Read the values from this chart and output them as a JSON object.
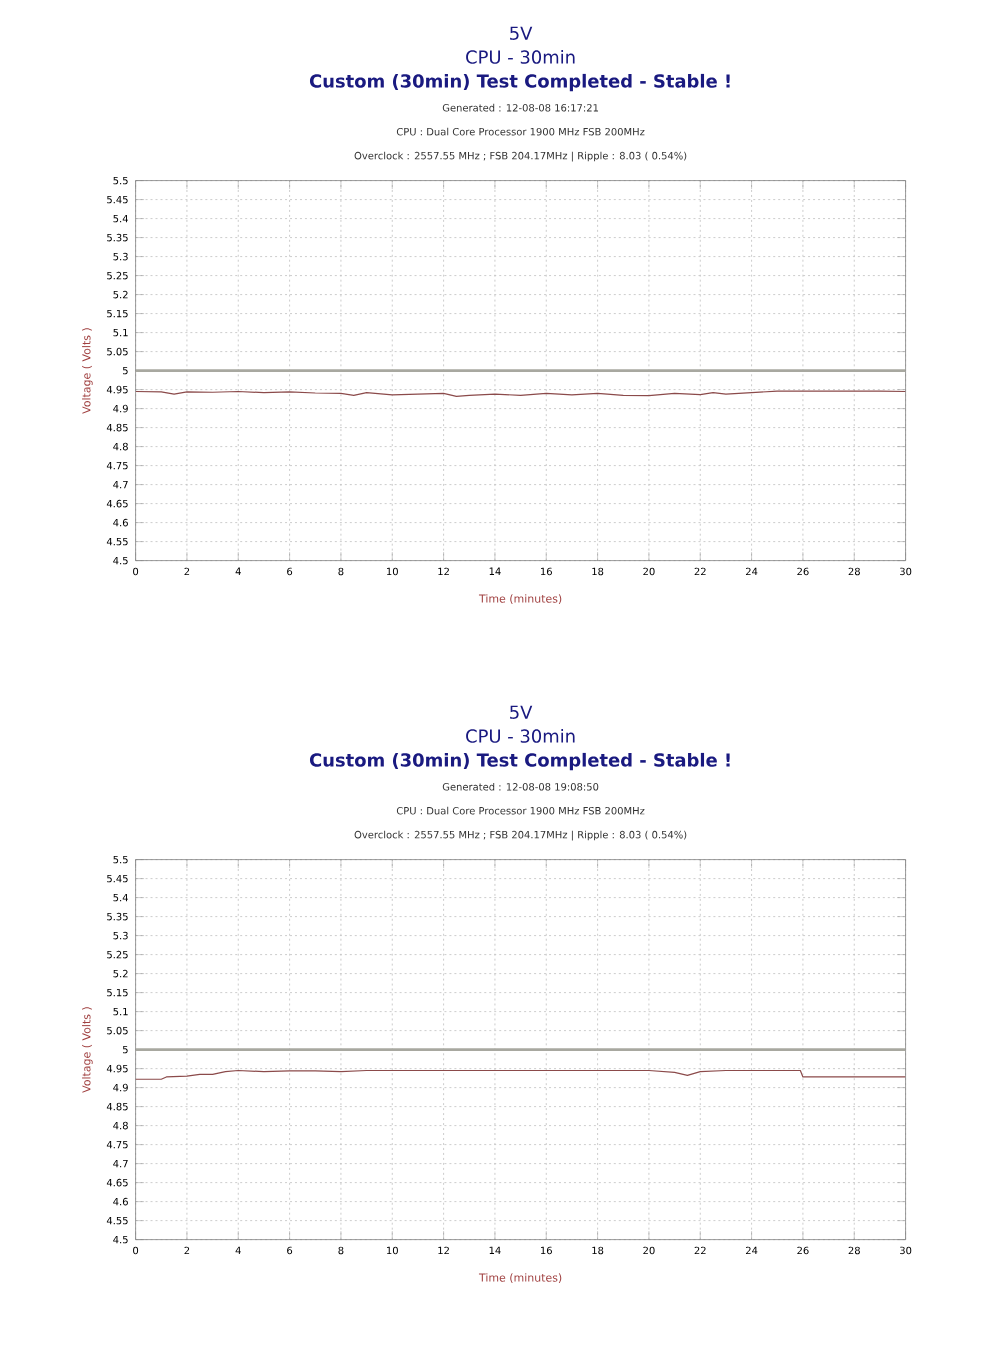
{
  "chart_data": [
    {
      "type": "line",
      "title": "5V",
      "subtitle": "CPU - 30min",
      "annotations": [
        "Custom (30min) Test Completed - Stable !",
        "Generated : 12-08-08 16:17:21",
        "CPU : Dual Core Processor 1900 MHz FSB 200MHz",
        "Overclock : 2557.55 MHz ; FSB 204.17MHz | Ripple : 8.03 ( 0.54%)"
      ],
      "xlabel": "Time (minutes)",
      "ylabel": "Voltage ( Volts )",
      "x": [
        0,
        1,
        1.5,
        2,
        3,
        4,
        5,
        6,
        7,
        8,
        8.5,
        9,
        10,
        11,
        12,
        12.5,
        13,
        14,
        15,
        16,
        17,
        18,
        19,
        20,
        21,
        22,
        22.5,
        23,
        24,
        25,
        26,
        27,
        28,
        29,
        30
      ],
      "series": [
        {
          "color": "#8b4a4a",
          "values": [
            4.945,
            4.944,
            4.938,
            4.944,
            4.943,
            4.945,
            4.942,
            4.944,
            4.941,
            4.94,
            4.935,
            4.942,
            4.936,
            4.938,
            4.94,
            4.932,
            4.935,
            4.938,
            4.935,
            4.94,
            4.936,
            4.94,
            4.935,
            4.934,
            4.94,
            4.937,
            4.942,
            4.938,
            4.942,
            4.946,
            4.946,
            4.946,
            4.946,
            4.946,
            4.945
          ]
        }
      ],
      "xlim": [
        0,
        30
      ],
      "ylim": [
        4.5,
        5.5
      ],
      "xticks": [
        0,
        2,
        4,
        6,
        8,
        10,
        12,
        14,
        16,
        18,
        20,
        22,
        24,
        26,
        28,
        30
      ],
      "yticks": [
        4.5,
        4.55,
        4.6,
        4.65,
        4.7,
        4.75,
        4.8,
        4.85,
        4.9,
        4.95,
        5,
        5.05,
        5.1,
        5.15,
        5.2,
        5.25,
        5.3,
        5.35,
        5.4,
        5.45,
        5.5
      ],
      "grid": true,
      "ref_lines": [
        {
          "axis": "y",
          "value": 5,
          "color": "#a8a8a0"
        }
      ]
    },
    {
      "type": "line",
      "title": "5V",
      "subtitle": "CPU - 30min",
      "annotations": [
        "Custom (30min) Test Completed - Stable !",
        "Generated : 12-08-08 19:08:50",
        "CPU : Dual Core Processor 1900 MHz FSB 200MHz",
        "Overclock : 2557.55 MHz ; FSB 204.17MHz | Ripple : 8.03 ( 0.54%)"
      ],
      "xlabel": "Time (minutes)",
      "ylabel": "Voltage ( Volts )",
      "x": [
        0,
        1,
        1.2,
        2,
        2.5,
        3,
        3.5,
        4,
        5,
        6,
        7,
        8,
        9,
        10,
        12,
        14,
        16,
        18,
        20,
        21,
        21.5,
        22,
        23,
        24,
        25,
        25.9,
        26,
        27,
        28,
        29,
        30
      ],
      "series": [
        {
          "color": "#8b4a4a",
          "values": [
            4.922,
            4.922,
            4.928,
            4.93,
            4.935,
            4.935,
            4.942,
            4.945,
            4.942,
            4.944,
            4.944,
            4.942,
            4.945,
            4.945,
            4.945,
            4.945,
            4.945,
            4.945,
            4.945,
            4.94,
            4.932,
            4.942,
            4.945,
            4.945,
            4.945,
            4.945,
            4.928,
            4.928,
            4.928,
            4.928,
            4.928
          ]
        }
      ],
      "xlim": [
        0,
        30
      ],
      "ylim": [
        4.5,
        5.5
      ],
      "xticks": [
        0,
        2,
        4,
        6,
        8,
        10,
        12,
        14,
        16,
        18,
        20,
        22,
        24,
        26,
        28,
        30
      ],
      "yticks": [
        4.5,
        4.55,
        4.6,
        4.65,
        4.7,
        4.75,
        4.8,
        4.85,
        4.9,
        4.95,
        5,
        5.05,
        5.1,
        5.15,
        5.2,
        5.25,
        5.3,
        5.35,
        5.4,
        5.45,
        5.5
      ],
      "grid": true,
      "ref_lines": [
        {
          "axis": "y",
          "value": 5,
          "color": "#a8a8a0"
        }
      ]
    }
  ]
}
